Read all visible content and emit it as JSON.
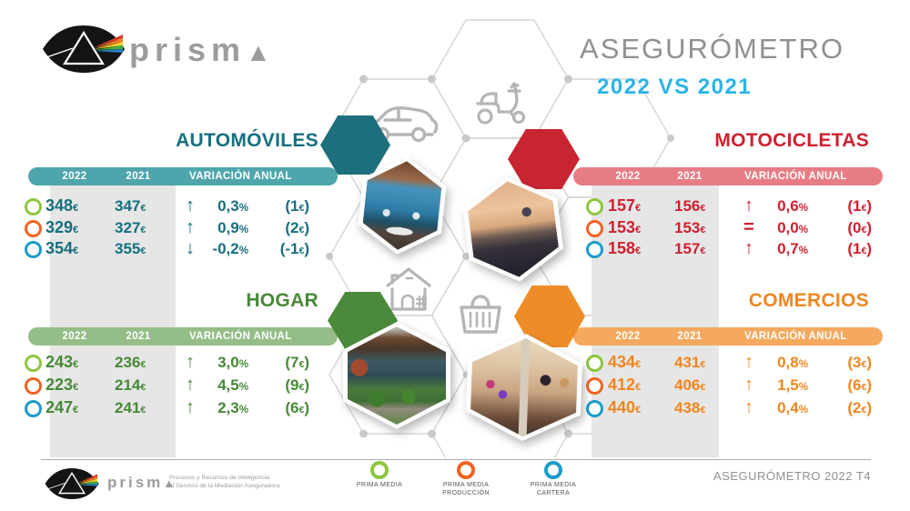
{
  "header": {
    "brand": "prisma",
    "title": "ASEGURÓMETRO",
    "title_color": "#8e9093",
    "subtitle": "2022 VS 2021",
    "subtitle_color": "#29b4e8"
  },
  "table_headers": {
    "y2022": "2022",
    "y2021": "2021",
    "variation": "VARIACIÓN ANUAL"
  },
  "sections": [
    {
      "id": "automoviles",
      "title": "AUTOMÓVILES",
      "accent": "#176f7e",
      "bar_color": "#4ea6ac",
      "hex_color": "#1e6f7d",
      "icon": "car-icon",
      "rows": [
        [
          "348€",
          "347€",
          "↑",
          "0,3%",
          "(1€)"
        ],
        [
          "329€",
          "327€",
          "↑",
          "0,9%",
          "(2€)"
        ],
        [
          "354€",
          "355€",
          "↓",
          "-0,2%",
          "(-1€)"
        ]
      ]
    },
    {
      "id": "motocicletas",
      "title": "MOTOCICLETAS",
      "accent": "#cf2030",
      "bar_color": "#e87c85",
      "hex_color": "#c82532",
      "icon": "scooter-icon",
      "rows": [
        [
          "157€",
          "156€",
          "↑",
          "0,6%",
          "(1€)"
        ],
        [
          "153€",
          "153€",
          "=",
          "0,0%",
          "(0€)"
        ],
        [
          "158€",
          "157€",
          "↑",
          "0,7%",
          "(1€)"
        ]
      ]
    },
    {
      "id": "hogar",
      "title": "HOGAR",
      "accent": "#478938",
      "bar_color": "#95bd87",
      "hex_color": "#4b8a3b",
      "icon": "house-icon",
      "rows": [
        [
          "243€",
          "236€",
          "↑",
          "3,0%",
          "(7€)"
        ],
        [
          "223€",
          "214€",
          "↑",
          "4,5%",
          "(9€)"
        ],
        [
          "247€",
          "241€",
          "↑",
          "2,3%",
          "(6€)"
        ]
      ]
    },
    {
      "id": "comercios",
      "title": "COMERCIOS",
      "accent": "#f0861f",
      "bar_color": "#f4a95e",
      "hex_color": "#ee8d27",
      "icon": "basket-icon",
      "rows": [
        [
          "434€",
          "431€",
          "↑",
          "0,8%",
          "(3€)"
        ],
        [
          "412€",
          "406€",
          "↑",
          "1,5%",
          "(6€)"
        ],
        [
          "440€",
          "438€",
          "↑",
          "0,4%",
          "(2€)"
        ]
      ]
    }
  ],
  "legend": [
    {
      "label_lines": [
        "PRIMA MEDIA"
      ],
      "color": "#8dc63f"
    },
    {
      "label_lines": [
        "PRIMA MEDIA",
        "PRODUCCIÓN"
      ],
      "color": "#f26322"
    },
    {
      "label_lines": [
        "PRIMA MEDIA",
        "CARTERA"
      ],
      "color": "#1b9cc9"
    }
  ],
  "footer": {
    "brand": "prisma",
    "tagline_lines": [
      "Procesos y Recursos de Inteligencia",
      "al Servicio de la Mediación Aseguradora"
    ],
    "edition": "ASEGURÓMETRO 2022 T4"
  },
  "center_icons": [
    "car-icon",
    "scooter-icon",
    "house-icon",
    "basket-icon"
  ],
  "chart_data": {
    "type": "table",
    "title": "ASEGURÓMETRO 2022 VS 2021",
    "unit": "EUR",
    "row_series": [
      "PRIMA MEDIA",
      "PRIMA MEDIA PRODUCCIÓN",
      "PRIMA MEDIA CARTERA"
    ],
    "columns": [
      "2022",
      "2021",
      "VARIACIÓN ANUAL %",
      "VARIACIÓN ANUAL €"
    ],
    "tables": [
      {
        "category": "AUTOMÓVILES",
        "rows": [
          [
            348,
            347,
            0.3,
            1
          ],
          [
            329,
            327,
            0.9,
            2
          ],
          [
            354,
            355,
            -0.2,
            -1
          ]
        ]
      },
      {
        "category": "MOTOCICLETAS",
        "rows": [
          [
            157,
            156,
            0.6,
            1
          ],
          [
            153,
            153,
            0.0,
            0
          ],
          [
            158,
            157,
            0.7,
            1
          ]
        ]
      },
      {
        "category": "HOGAR",
        "rows": [
          [
            243,
            236,
            3.0,
            7
          ],
          [
            223,
            214,
            4.5,
            9
          ],
          [
            247,
            241,
            2.3,
            6
          ]
        ]
      },
      {
        "category": "COMERCIOS",
        "rows": [
          [
            434,
            431,
            0.8,
            3
          ],
          [
            412,
            406,
            1.5,
            6
          ],
          [
            440,
            438,
            0.4,
            2
          ]
        ]
      }
    ]
  }
}
